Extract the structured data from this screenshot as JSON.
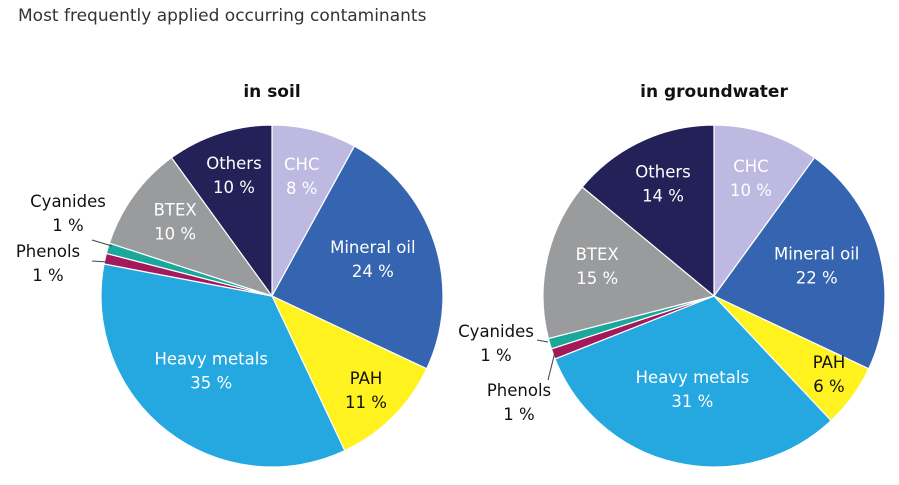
{
  "title": "Most frequently applied occurring contaminants",
  "chart_data": [
    {
      "type": "pie",
      "title": "in soil",
      "slices": [
        {
          "label": "CHC",
          "value": 8,
          "value_label": "8 %",
          "color": "#beb9e0",
          "text_color": "#ffffff"
        },
        {
          "label": "Mineral oil",
          "value": 24,
          "value_label": "24 %",
          "color": "#3565b0",
          "text_color": "#ffffff"
        },
        {
          "label": "PAH",
          "value": 11,
          "value_label": "11 %",
          "color": "#fff21e",
          "text_color": "#111111"
        },
        {
          "label": "Heavy metals",
          "value": 35,
          "value_label": "35 %",
          "color": "#25a8e0",
          "text_color": "#ffffff"
        },
        {
          "label": "Phenols",
          "value": 1,
          "value_label": "1 %",
          "color": "#a3195b",
          "text_color": "#111111"
        },
        {
          "label": "Cyanides",
          "value": 1,
          "value_label": "1 %",
          "color": "#1aa89a",
          "text_color": "#111111"
        },
        {
          "label": "BTEX",
          "value": 10,
          "value_label": "10 %",
          "color": "#9a9b9d",
          "text_color": "#ffffff"
        },
        {
          "label": "Others",
          "value": 10,
          "value_label": "10 %",
          "color": "#232158",
          "text_color": "#ffffff"
        }
      ]
    },
    {
      "type": "pie",
      "title": "in groundwater",
      "slices": [
        {
          "label": "CHC",
          "value": 10,
          "value_label": "10 %",
          "color": "#beb9e0",
          "text_color": "#ffffff"
        },
        {
          "label": "Mineral oil",
          "value": 22,
          "value_label": "22 %",
          "color": "#3565b0",
          "text_color": "#ffffff"
        },
        {
          "label": "PAH",
          "value": 6,
          "value_label": "6 %",
          "color": "#fff21e",
          "text_color": "#111111"
        },
        {
          "label": "Heavy metals",
          "value": 31,
          "value_label": "31 %",
          "color": "#25a8e0",
          "text_color": "#ffffff"
        },
        {
          "label": "Phenols",
          "value": 1,
          "value_label": "1 %",
          "color": "#a3195b",
          "text_color": "#111111"
        },
        {
          "label": "Cyanides",
          "value": 1,
          "value_label": "1 %",
          "color": "#1aa89a",
          "text_color": "#111111"
        },
        {
          "label": "BTEX",
          "value": 15,
          "value_label": "15 %",
          "color": "#9a9b9d",
          "text_color": "#ffffff"
        },
        {
          "label": "Others",
          "value": 14,
          "value_label": "14 %",
          "color": "#232158",
          "text_color": "#ffffff"
        }
      ]
    }
  ]
}
